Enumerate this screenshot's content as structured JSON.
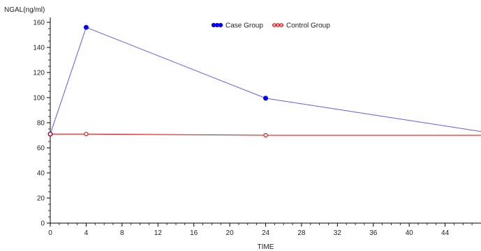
{
  "chart_data": {
    "type": "line",
    "title": "",
    "ylabel": "NGAL(ng/ml)",
    "xlabel": "TIME",
    "xlim": [
      0,
      48
    ],
    "ylim": [
      0,
      160
    ],
    "x_ticks": [
      0,
      4,
      8,
      12,
      16,
      20,
      24,
      28,
      32,
      36,
      40,
      44
    ],
    "y_ticks": [
      0,
      20,
      40,
      60,
      80,
      100,
      120,
      140,
      160
    ],
    "legend_position": "top-center",
    "series": [
      {
        "name": "Case Group",
        "color": "#0000ff",
        "line_color": "#5a5aff",
        "marker": "filled-circle",
        "x": [
          0,
          4,
          24,
          48
        ],
        "y": [
          71,
          156,
          99.5,
          73
        ]
      },
      {
        "name": "Control Group",
        "color": "#e00000",
        "line_color": "#e00000",
        "marker": "open-circle",
        "x": [
          0,
          4,
          24,
          48
        ],
        "y": [
          71,
          71,
          70,
          70
        ]
      }
    ]
  }
}
